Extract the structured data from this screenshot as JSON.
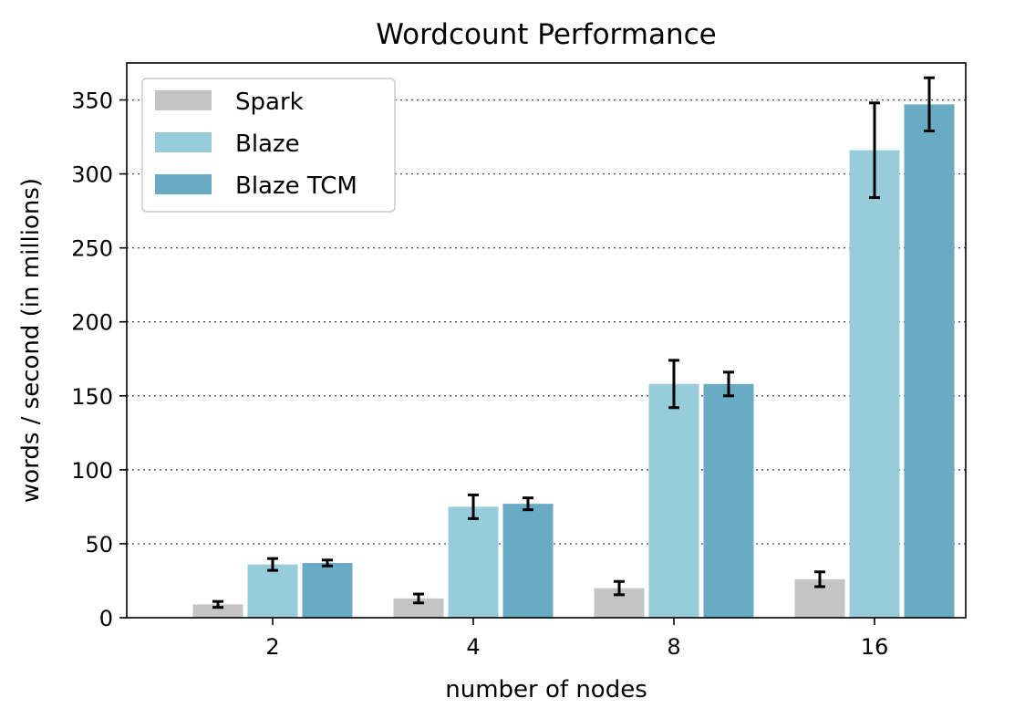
{
  "chart_data": {
    "type": "bar",
    "title": "Wordcount Performance",
    "xlabel": "number of nodes",
    "ylabel": "words / second (in millions)",
    "categories": [
      "2",
      "4",
      "8",
      "16"
    ],
    "ylim": [
      0,
      375
    ],
    "yticks": [
      0,
      50,
      100,
      150,
      200,
      250,
      300,
      350
    ],
    "grid": "y-dotted",
    "legend_position": "top-left",
    "series": [
      {
        "name": "Spark",
        "color": "#c4c4c4",
        "values": [
          9,
          13,
          20,
          26
        ],
        "errors": [
          2,
          3,
          4.5,
          5
        ]
      },
      {
        "name": "Blaze",
        "color": "#97cdda",
        "values": [
          36,
          75,
          158,
          316
        ],
        "errors": [
          4,
          8,
          16,
          32
        ]
      },
      {
        "name": "Blaze TCM",
        "color": "#6aabc4",
        "values": [
          37,
          77,
          158,
          347
        ],
        "errors": [
          2,
          4,
          8,
          18
        ]
      }
    ]
  }
}
